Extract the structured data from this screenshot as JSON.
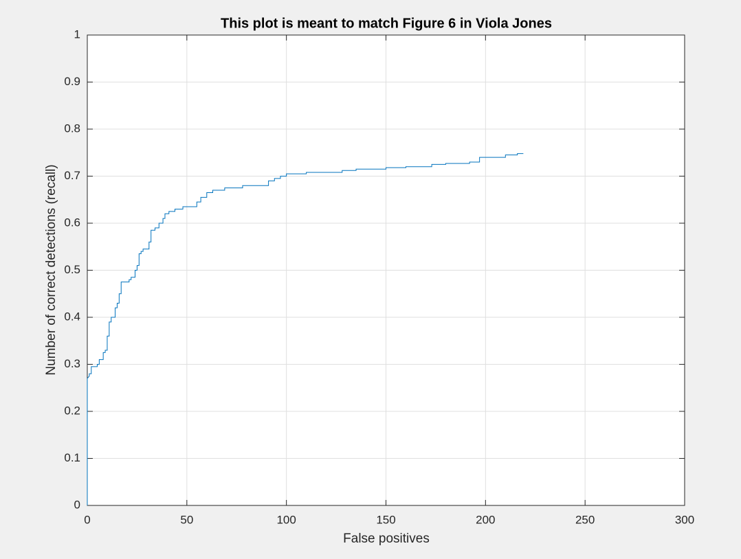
{
  "chart_data": {
    "type": "line",
    "title": "This plot is meant to match Figure 6 in Viola Jones",
    "x_label": "False positives",
    "y_label": "Number of correct detections (recall)",
    "x": [
      0,
      0,
      1,
      1,
      2,
      2,
      5,
      5,
      6,
      6,
      8,
      8,
      9,
      9,
      10,
      10,
      11,
      11,
      12,
      12,
      14,
      14,
      15,
      15,
      16,
      16,
      17,
      17,
      21,
      21,
      22,
      22,
      24,
      24,
      25,
      25,
      26,
      26,
      27,
      27,
      28,
      28,
      31,
      31,
      32,
      32,
      34,
      34,
      36,
      36,
      38,
      38,
      39,
      39,
      41,
      41,
      44,
      44,
      48,
      48,
      55,
      55,
      57,
      57,
      60,
      60,
      63,
      63,
      69,
      69,
      78,
      78,
      91,
      91,
      94,
      94,
      97,
      97,
      100,
      100,
      110,
      110,
      128,
      128,
      135,
      135,
      150,
      150,
      160,
      160,
      173,
      173,
      180,
      180,
      192,
      192,
      197,
      197,
      210,
      210,
      216,
      216,
      219
    ],
    "series": [
      {
        "color": "#0072bd",
        "values": [
          0,
          0.27,
          0.275,
          0.28,
          0.28,
          0.295,
          0.295,
          0.3,
          0.3,
          0.31,
          0.31,
          0.325,
          0.325,
          0.33,
          0.33,
          0.36,
          0.36,
          0.39,
          0.39,
          0.4,
          0.4,
          0.42,
          0.42,
          0.43,
          0.43,
          0.45,
          0.45,
          0.475,
          0.475,
          0.48,
          0.48,
          0.485,
          0.485,
          0.5,
          0.5,
          0.51,
          0.51,
          0.535,
          0.535,
          0.54,
          0.54,
          0.545,
          0.545,
          0.56,
          0.56,
          0.585,
          0.585,
          0.59,
          0.59,
          0.6,
          0.6,
          0.61,
          0.61,
          0.62,
          0.62,
          0.625,
          0.625,
          0.63,
          0.63,
          0.635,
          0.635,
          0.645,
          0.645,
          0.655,
          0.655,
          0.665,
          0.665,
          0.67,
          0.67,
          0.675,
          0.675,
          0.68,
          0.68,
          0.69,
          0.69,
          0.695,
          0.695,
          0.7,
          0.7,
          0.705,
          0.705,
          0.708,
          0.708,
          0.712,
          0.712,
          0.715,
          0.715,
          0.718,
          0.718,
          0.72,
          0.72,
          0.725,
          0.725,
          0.727,
          0.727,
          0.73,
          0.73,
          0.74,
          0.74,
          0.745,
          0.745,
          0.748,
          0.748
        ]
      }
    ],
    "xlim": [
      0,
      300
    ],
    "xticks": [
      0,
      50,
      100,
      150,
      200,
      250,
      300
    ],
    "ylim": [
      0,
      1
    ],
    "yticks": [
      0,
      0.1,
      0.2,
      0.3,
      0.4,
      0.5,
      0.6,
      0.7,
      0.8,
      0.9,
      1
    ],
    "grid": true
  }
}
